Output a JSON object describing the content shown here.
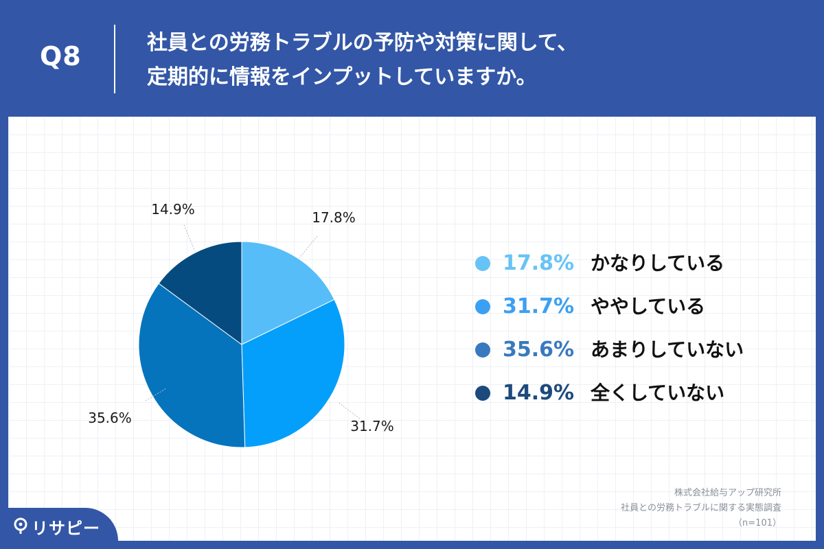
{
  "header": {
    "question_no": "Q8",
    "title_line1": "社員との労務トラブルの予防や対策に関して、",
    "title_line2": "定期的に情報をインプットしていますか。"
  },
  "chart_data": {
    "type": "pie",
    "categories": [
      "かなりしている",
      "ややしている",
      "あまりしていない",
      "全くしていない"
    ],
    "values": [
      17.8,
      31.7,
      35.6,
      14.9
    ],
    "value_labels": [
      "17.8%",
      "31.7%",
      "35.6%",
      "14.9%"
    ],
    "colors": [
      "#56bdf9",
      "#049ffb",
      "#0574bd",
      "#064b7f"
    ],
    "legend_dot_colors": [
      "#67c3f5",
      "#3ba0f3",
      "#3979bd",
      "#1d4a7d"
    ],
    "legend_text_colors": [
      "#67c3f5",
      "#3ba0f3",
      "#3979bd",
      "#1d4a7d"
    ],
    "start": "12 o'clock",
    "direction": "clockwise",
    "legend_position": "right"
  },
  "source": {
    "line1": "株式会社給与アップ研究所",
    "line2": "社員との労務トラブルに関する実態調査",
    "line3": "（n=101）"
  },
  "brand": {
    "name": "リサピー",
    "icon": "pin-icon"
  }
}
